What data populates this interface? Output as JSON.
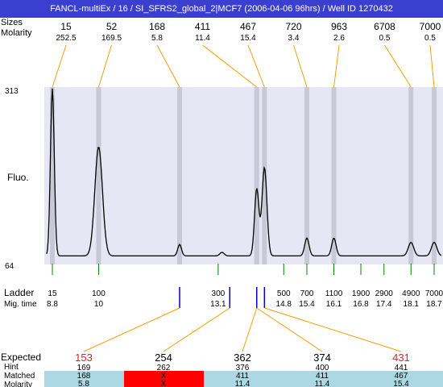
{
  "title": "FANCL-multiEx / 16 / SI_SFRS2_global_2|MCF7 (2006-04-06 96hrs) / Well ID 1270432",
  "header_labels": {
    "sizes": "Sizes",
    "molarity": "Molarity"
  },
  "y_axis": {
    "label": "Fluo.",
    "ticks": [
      "313",
      "64"
    ],
    "ylim": [
      64,
      313
    ]
  },
  "ladder_section": {
    "label": "Ladder",
    "mig_label": "Mig. time"
  },
  "bottom_labels": {
    "expected": "Expected",
    "hint": "Hint",
    "matched": "Matched",
    "molarity": "Molarity"
  },
  "colors": {
    "title_bg": "#3a3fd0",
    "plot_bg": "#e6e6f5",
    "lane_band": "#c8c8d6",
    "expected_red": "#e51c1c",
    "matched_bg": "#acd8e3",
    "no_match_bg": "#ff0000",
    "connector": "#f0a000",
    "ladder_tick": "#008000",
    "mig_tick": "#0000cc"
  },
  "chart_data": {
    "type": "line",
    "title": "FANCL-multiEx / 16 / SI_SFRS2_global_2|MCF7 (2006-04-06 96hrs) / Well ID 1270432",
    "ylabel": "Fluo.",
    "ylim": [
      64,
      313
    ],
    "xlim": [
      8.5,
      18.9
    ],
    "grid": false,
    "baseline": 76,
    "peaks": [
      {
        "size": "15",
        "molarity": "252.5",
        "mig_time": 8.8,
        "height": 311
      },
      {
        "size": "52",
        "molarity": "169.5",
        "mig_time": 10.0,
        "height": 229
      },
      {
        "size": "168",
        "molarity": "5.8",
        "mig_time": 12.1,
        "height": 92
      },
      {
        "size": "411",
        "molarity": "11.4",
        "mig_time": 14.1,
        "height": 170
      },
      {
        "size": "467",
        "molarity": "15.4",
        "mig_time": 14.3,
        "height": 200
      },
      {
        "size": "720",
        "molarity": "3.4",
        "mig_time": 15.4,
        "height": 101
      },
      {
        "size": "963",
        "molarity": "2.6",
        "mig_time": 16.1,
        "height": 101
      },
      {
        "size": "6708",
        "molarity": "0.5",
        "mig_time": 18.1,
        "height": 95
      },
      {
        "size": "7000",
        "molarity": "0.5",
        "mig_time": 18.7,
        "height": 95
      }
    ],
    "ladder": [
      {
        "size": "15",
        "mig_time": "8.8",
        "t": 8.8
      },
      {
        "size": "100",
        "mig_time": "10",
        "t": 10.0
      },
      {
        "size": "300",
        "mig_time": "13.1",
        "t": 13.1
      },
      {
        "size": "500",
        "mig_time": "14.8",
        "t": 14.8
      },
      {
        "size": "700",
        "mig_time": "15.4",
        "t": 15.4
      },
      {
        "size": "1100",
        "mig_time": "16.1",
        "t": 16.1
      },
      {
        "size": "1900",
        "mig_time": "16.8",
        "t": 16.8
      },
      {
        "size": "2900",
        "mig_time": "17.4",
        "t": 17.4
      },
      {
        "size": "4900",
        "mig_time": "18.1",
        "t": 18.1
      },
      {
        "size": "7000",
        "mig_time": "18.7",
        "t": 18.7
      }
    ],
    "mig_markers": [
      12.1,
      13.4,
      14.1,
      14.3
    ],
    "expected": [
      {
        "expected": "153",
        "hint": "169",
        "matched": "168",
        "molarity": "5.8",
        "highlight": true,
        "matched_ok": true,
        "marker": 12.1
      },
      {
        "expected": "254",
        "hint": "262",
        "matched": "X",
        "molarity": "X",
        "highlight": false,
        "matched_ok": false,
        "marker": 13.4
      },
      {
        "expected": "362",
        "hint": "376",
        "matched": "411",
        "molarity": "11.4",
        "highlight": false,
        "matched_ok": true,
        "marker": 14.1
      },
      {
        "expected": "374",
        "hint": "400",
        "matched": "411",
        "molarity": "11.4",
        "highlight": false,
        "matched_ok": true,
        "marker": 14.1
      },
      {
        "expected": "431",
        "hint": "441",
        "matched": "467",
        "molarity": "15.4",
        "highlight": true,
        "matched_ok": true,
        "marker": 14.3
      }
    ]
  }
}
